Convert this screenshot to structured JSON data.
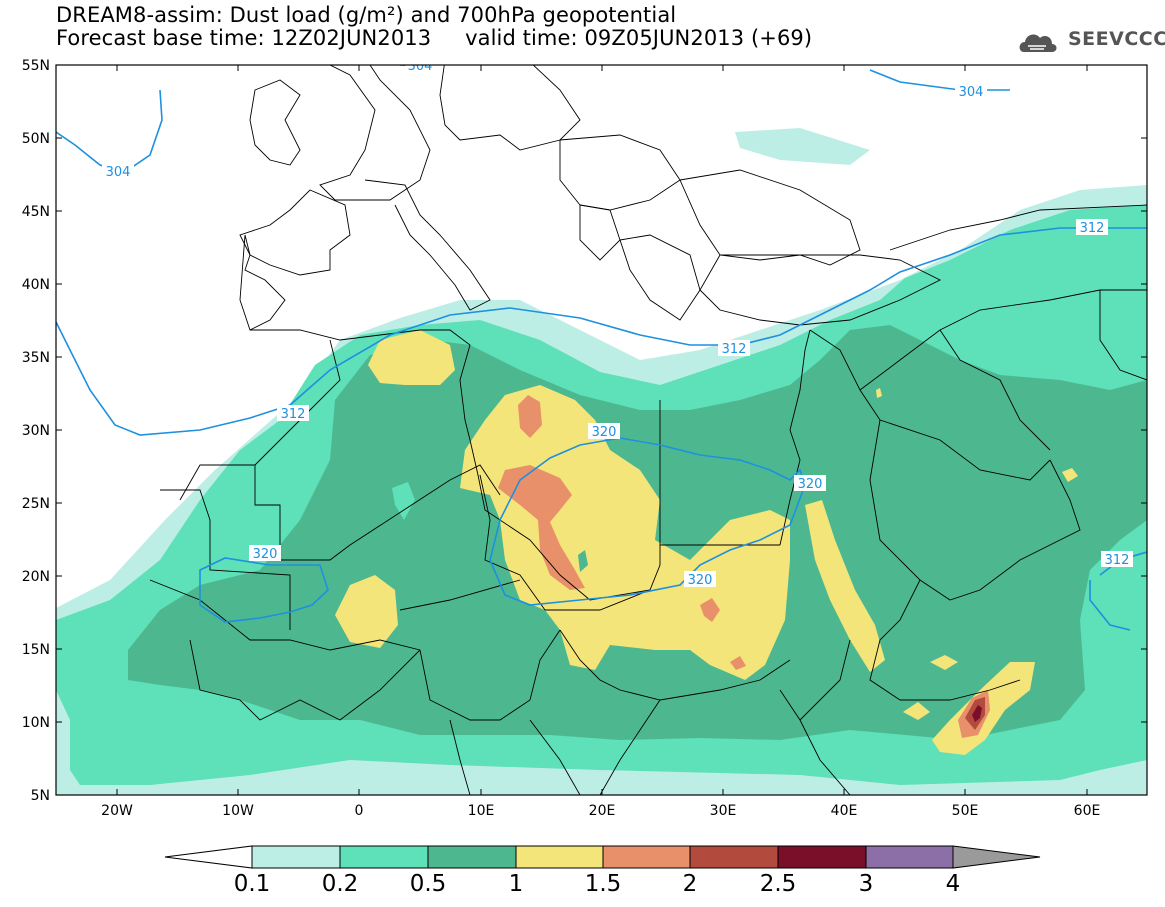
{
  "title": {
    "line1": "DREAM8-assim: Dust load (g/m²) and 700hPa geopotential",
    "line2": "Forecast base time: 12Z02JUN2013     valid time: 09Z05JUN2013 (+69)"
  },
  "logo": {
    "text": "SEEVCCC",
    "icon": "cloud-icon"
  },
  "map": {
    "lat_labels": [
      "55N",
      "50N",
      "45N",
      "40N",
      "35N",
      "30N",
      "25N",
      "20N",
      "15N",
      "10N",
      "5N"
    ],
    "lon_labels": [
      "20W",
      "10W",
      "0",
      "10E",
      "20E",
      "30E",
      "40E",
      "50E",
      "60E"
    ],
    "contour_labels": [
      "304",
      "304",
      "304",
      "312",
      "312",
      "312",
      "312",
      "320",
      "320",
      "320",
      "320"
    ]
  },
  "colorbar": {
    "labels": [
      "0.1",
      "0.2",
      "0.5",
      "1",
      "1.5",
      "2",
      "2.5",
      "3",
      "4"
    ],
    "colors": [
      "#bdeee6",
      "#5ee0b8",
      "#4db890",
      "#f4e57a",
      "#e8906a",
      "#b24a3e",
      "#7a0f2a",
      "#8c6fa6",
      "#9a9a9a"
    ]
  },
  "colors": {
    "level_0_1": "#bdeee6",
    "level_0_2": "#5ee0b8",
    "level_0_5": "#4db890",
    "level_1": "#f4e57a",
    "level_1_5": "#e8906a",
    "level_2": "#b24a3e",
    "level_2_5": "#7a0f2a",
    "contour": "#1e90e0"
  }
}
